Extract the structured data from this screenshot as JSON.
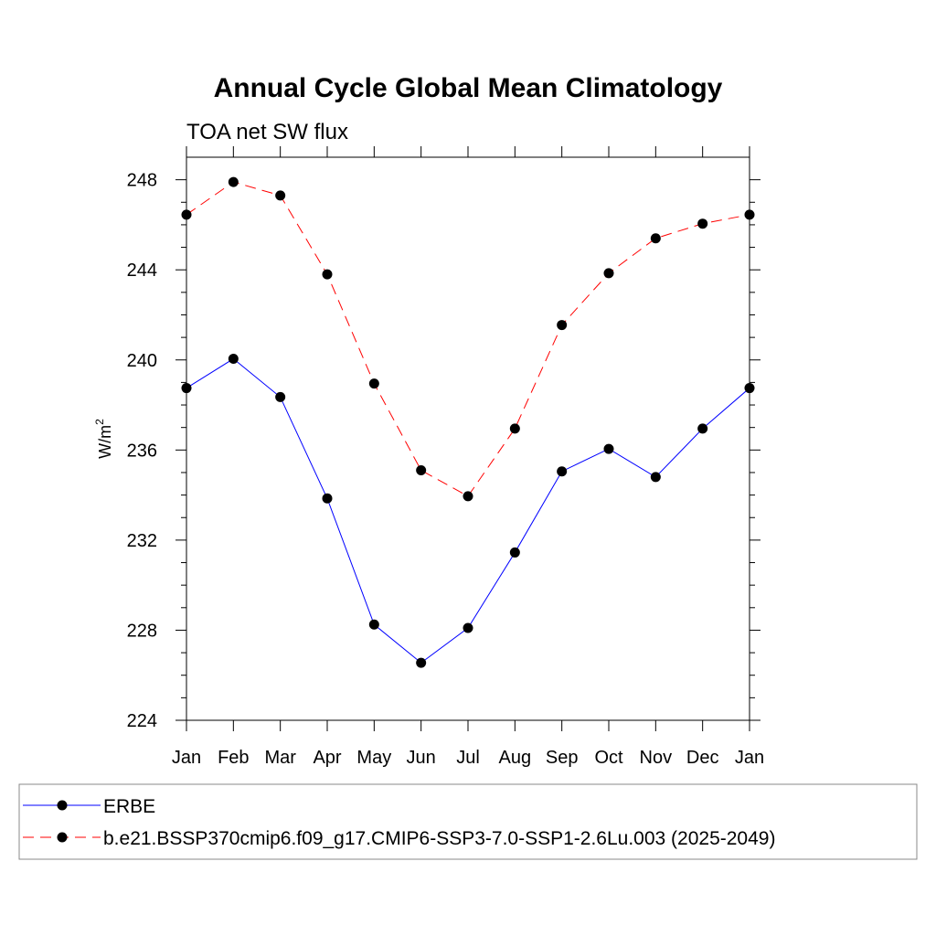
{
  "chart_data": {
    "type": "line",
    "title": "Annual Cycle Global Mean Climatology",
    "subtitle": "TOA net SW flux",
    "ylabel": "W/m",
    "ylabel_sup": "2",
    "xlabel": "",
    "categories": [
      "Jan",
      "Feb",
      "Mar",
      "Apr",
      "May",
      "Jun",
      "Jul",
      "Aug",
      "Sep",
      "Oct",
      "Nov",
      "Dec",
      "Jan"
    ],
    "ylim": [
      224,
      249
    ],
    "yticks": [
      224,
      228,
      232,
      236,
      240,
      244,
      248
    ],
    "ytick_labels": [
      "224",
      "228",
      "232",
      "236",
      "240",
      "244",
      "248"
    ],
    "grid": false,
    "legend_position": "bottom",
    "series": [
      {
        "name": "ERBE",
        "color": "#0000ff",
        "dash": "solid",
        "marker": "filled-circle",
        "values": [
          238.75,
          240.05,
          238.35,
          233.85,
          228.25,
          226.55,
          228.1,
          231.45,
          235.05,
          236.05,
          234.8,
          236.95,
          238.75
        ]
      },
      {
        "name": "b.e21.BSSP370cmip6.f09_g17.CMIP6-SSP3-7.0-SSP1-2.6Lu.003 (2025-2049)",
        "color": "#ff0000",
        "dash": "dashed",
        "marker": "filled-circle",
        "values": [
          246.45,
          247.9,
          247.3,
          243.8,
          238.95,
          235.1,
          233.95,
          236.95,
          241.55,
          243.85,
          245.4,
          246.05,
          246.45
        ]
      }
    ]
  }
}
